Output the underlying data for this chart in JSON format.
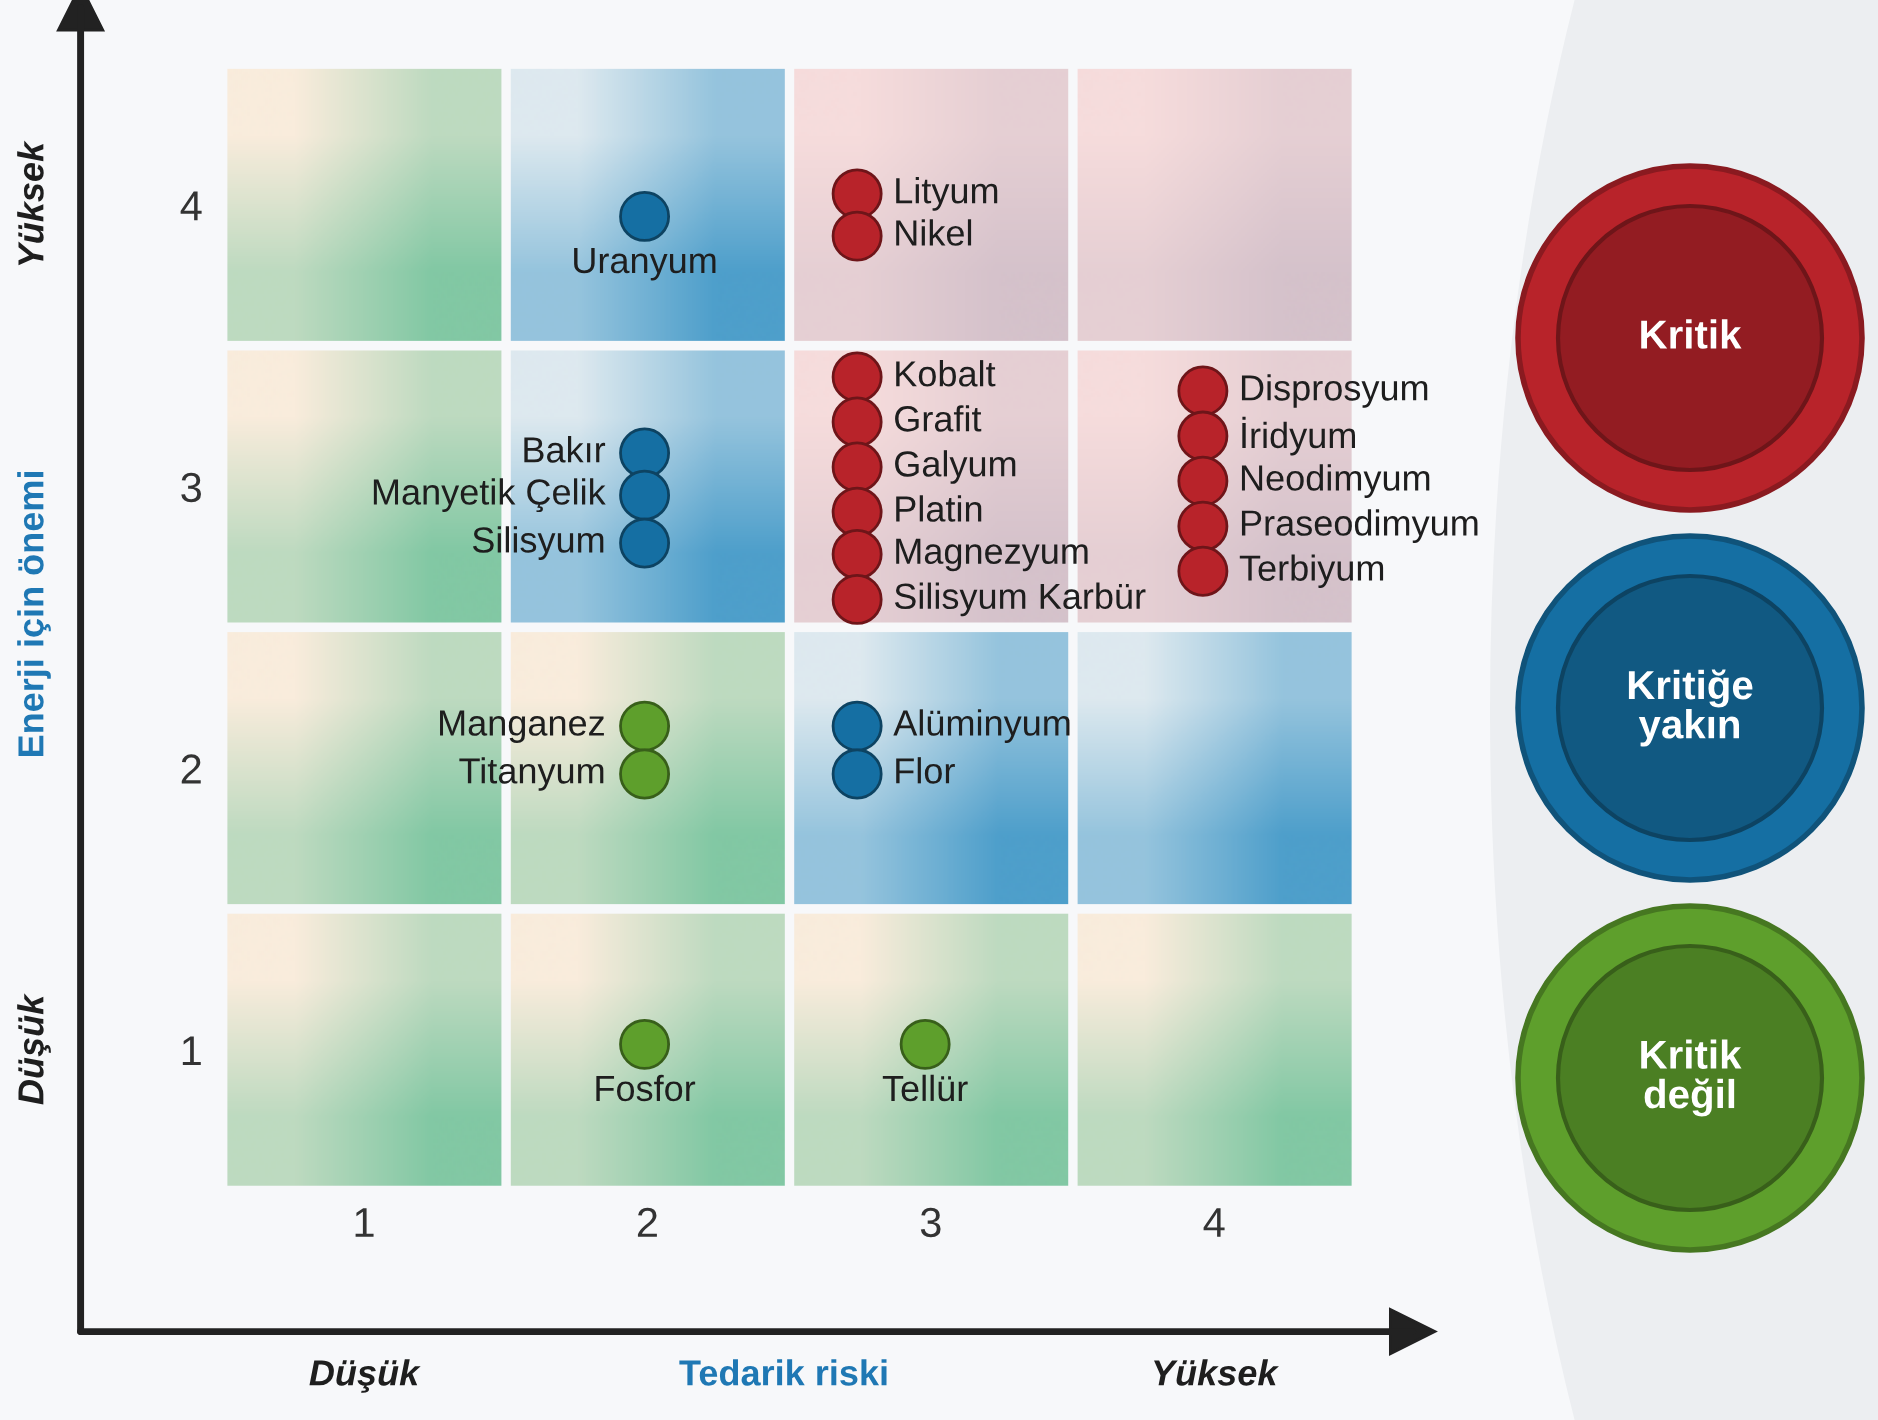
{
  "chart_data": {
    "type": "scatter",
    "xlabel": "Tedarik riski",
    "ylabel": "Enerji için önemi",
    "xlim": [
      0,
      4.7
    ],
    "ylim": [
      0,
      4.7
    ],
    "xticks": [
      1,
      2,
      3,
      4
    ],
    "yticks": [
      1,
      2,
      3,
      4
    ],
    "grid": false,
    "legend": "right",
    "marker": "circle",
    "series": [
      {
        "name": "Kritik",
        "color": "#b8232a",
        "x": [
          2.74,
          2.74,
          2.74,
          2.74,
          2.74,
          2.74,
          2.74,
          2.74,
          3.96,
          3.96,
          3.96,
          3.96,
          3.96
        ],
        "values": [
          4.04,
          3.89,
          3.39,
          3.23,
          3.07,
          2.91,
          2.76,
          2.6,
          3.34,
          3.18,
          3.02,
          2.86,
          2.7
        ]
      },
      {
        "name": "Kritiğe\nyakın",
        "color": "#156fa3",
        "x": [
          1.99,
          1.99,
          1.99,
          1.99,
          2.74,
          2.74
        ],
        "values": [
          3.96,
          3.12,
          2.97,
          2.8,
          2.15,
          1.98
        ]
      },
      {
        "name": "Kritik\ndeğil",
        "color": "#5e9f2c",
        "x": [
          1.99,
          1.99,
          1.99,
          2.98
        ],
        "values": [
          2.15,
          1.98,
          1.02,
          1.02
        ]
      }
    ],
    "annotations": [
      "Düşük",
      "Yüksek",
      "Düşük",
      "Yüksek",
      {
        "text": "Lityum",
        "x": 2.74,
        "y": 4.04
      },
      {
        "text": "Nikel",
        "x": 2.74,
        "y": 3.89
      },
      {
        "text": "Kobalt",
        "x": 2.74,
        "y": 3.39
      },
      {
        "text": "Grafit",
        "x": 2.74,
        "y": 3.23
      },
      {
        "text": "Galyum",
        "x": 2.74,
        "y": 3.07
      },
      {
        "text": "Platin",
        "x": 2.74,
        "y": 2.91
      },
      {
        "text": "Magnezyum",
        "x": 2.74,
        "y": 2.76
      },
      {
        "text": "Silisyum Karbür",
        "x": 2.74,
        "y": 2.6
      },
      {
        "text": "Disprosyum",
        "x": 3.96,
        "y": 3.34
      },
      {
        "text": "İridyum",
        "x": 3.96,
        "y": 3.18
      },
      {
        "text": "Neodimyum",
        "x": 3.96,
        "y": 3.02
      },
      {
        "text": "Praseodimyum",
        "x": 3.96,
        "y": 2.86
      },
      {
        "text": "Terbiyum",
        "x": 3.96,
        "y": 2.7
      },
      {
        "text": "Uranyum",
        "x": 1.99,
        "y": 3.96
      },
      {
        "text": "Bakır",
        "x": 1.99,
        "y": 3.12
      },
      {
        "text": "Manyetik Çelik",
        "x": 1.99,
        "y": 2.97
      },
      {
        "text": "Silisyum",
        "x": 1.99,
        "y": 2.8
      },
      {
        "text": "Alüminyum",
        "x": 2.74,
        "y": 2.15
      },
      {
        "text": "Flor",
        "x": 2.74,
        "y": 1.98
      },
      {
        "text": "Manganez",
        "x": 1.99,
        "y": 2.15
      },
      {
        "text": "Titanyum",
        "x": 1.99,
        "y": 1.98
      },
      {
        "text": "Fosfor",
        "x": 1.99,
        "y": 1.02
      },
      {
        "text": "Tellür",
        "x": 2.98,
        "y": 1.02
      }
    ]
  }
}
